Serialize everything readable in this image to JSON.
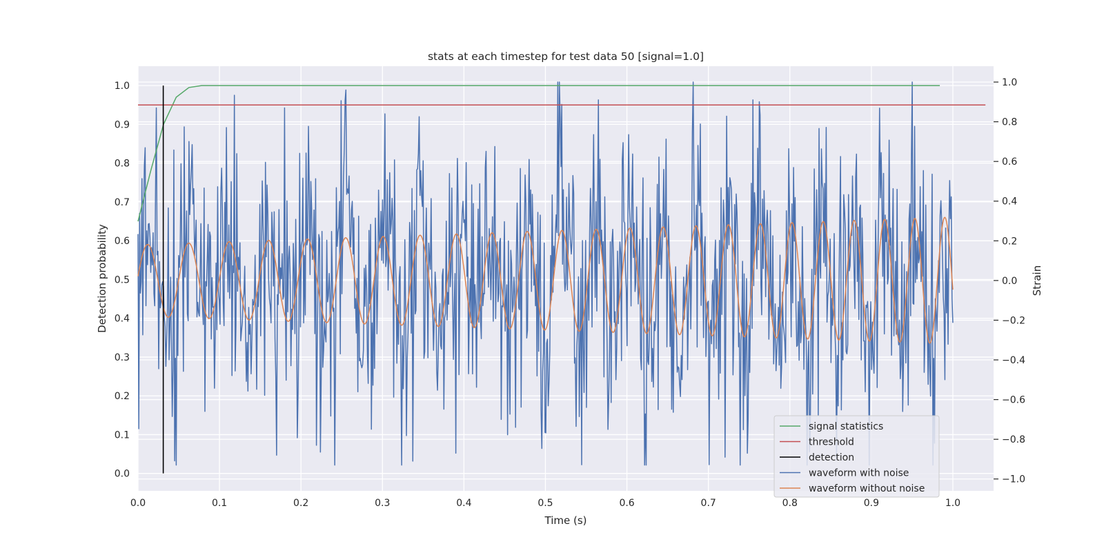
{
  "chart_data": {
    "type": "line",
    "title": "stats at each timestep for test data 50 [signal=1.0]",
    "xlabel": "Time (s)",
    "ylabel_left": "Detection probability",
    "ylabel_right": "Strain",
    "xlim": [
      0.0,
      1.05
    ],
    "ylim_left": [
      -0.045,
      1.05
    ],
    "ylim_right": [
      -1.06,
      1.08
    ],
    "x_ticks": [
      "0.0",
      "0.1",
      "0.2",
      "0.3",
      "0.4",
      "0.5",
      "0.6",
      "0.7",
      "0.8",
      "0.9",
      "1.0"
    ],
    "y_left_ticks": [
      "0.0",
      "0.1",
      "0.2",
      "0.3",
      "0.4",
      "0.5",
      "0.6",
      "0.7",
      "0.8",
      "0.9",
      "1.0"
    ],
    "y_right_ticks": [
      "−1.0",
      "−0.8",
      "−0.6",
      "−0.4",
      "−0.2",
      "0.0",
      "0.2",
      "0.4",
      "0.6",
      "0.8",
      "1.0"
    ],
    "grid": true,
    "legend_position": "lower-right",
    "colors": {
      "signal_statistics": "#55a868",
      "threshold": "#c44e52",
      "detection": "#000000",
      "waveform_with_noise": "#4c72b0",
      "waveform_without_noise": "#dd8452",
      "background": "#eaeaf2"
    },
    "series": [
      {
        "name": "signal statistics",
        "axis": "left",
        "x": [
          0.0,
          0.0156,
          0.0313,
          0.0469,
          0.0625,
          0.0781,
          0.1,
          0.2,
          0.4,
          0.6,
          0.8,
          0.984
        ],
        "values": [
          0.65,
          0.78,
          0.9,
          0.97,
          0.995,
          1.0,
          1.0,
          1.0,
          1.0,
          1.0,
          1.0,
          1.0
        ]
      },
      {
        "name": "threshold",
        "axis": "left",
        "x": [
          0.0,
          1.04
        ],
        "values": [
          0.95,
          0.95
        ]
      },
      {
        "name": "detection",
        "axis": "left",
        "x": [
          0.031,
          0.031
        ],
        "values": [
          0.0,
          1.0
        ]
      },
      {
        "name": "waveform with noise",
        "axis": "right",
        "note_x_range": [
          0.0,
          1.0
        ],
        "amplitude_std": 0.33,
        "peak_values": [
          {
            "x": 0.022,
            "y": 0.87
          },
          {
            "x": 0.18,
            "y": 0.87
          },
          {
            "x": 0.255,
            "y": 0.96
          },
          {
            "x": 0.303,
            "y": 0.84
          },
          {
            "x": 0.565,
            "y": 0.91
          },
          {
            "x": 0.755,
            "y": 0.91
          },
          {
            "x": 0.95,
            "y": 1.0
          }
        ],
        "trough_values": [
          {
            "x": 0.17,
            "y": -0.88
          },
          {
            "x": 0.337,
            "y": -0.91
          },
          {
            "x": 0.39,
            "y": -0.87
          },
          {
            "x": 0.72,
            "y": -0.89
          },
          {
            "x": 0.978,
            "y": -0.82
          }
        ]
      },
      {
        "name": "waveform without noise",
        "axis": "right",
        "x_range": [
          0.0,
          1.0
        ],
        "amplitude_start": 0.18,
        "amplitude_end": 0.32,
        "frequency_start_hz": 19.5,
        "frequency_end_hz": 27.5
      }
    ],
    "legend": [
      "signal statistics",
      "threshold",
      "detection",
      "waveform with noise",
      "waveform without noise"
    ]
  }
}
